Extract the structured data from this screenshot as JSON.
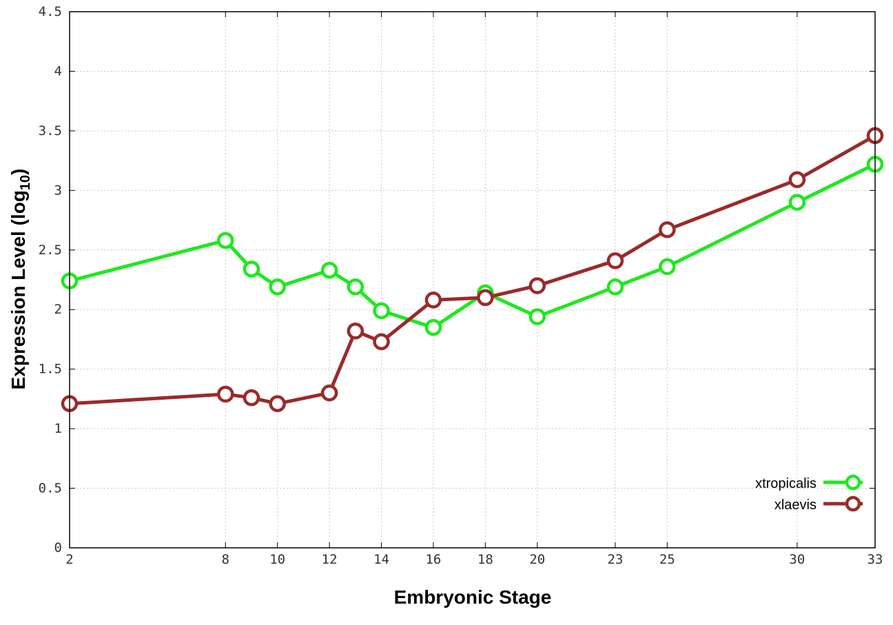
{
  "chart_data": {
    "type": "line",
    "title": "",
    "xlabel": "Embryonic Stage",
    "ylabel": "Expression Level (log",
    "ylabel_subscript": "10",
    "ylabel_suffix": ")",
    "x_ticks": [
      2,
      8,
      10,
      12,
      14,
      16,
      18,
      20,
      23,
      25,
      30,
      33
    ],
    "y_ticks": [
      0,
      0.5,
      1,
      1.5,
      2,
      2.5,
      3,
      3.5,
      4,
      4.5
    ],
    "y_tick_labels": [
      "0",
      "0.5",
      "1",
      "1.5",
      "2",
      "2.5",
      "3",
      "3.5",
      "4",
      "4.5"
    ],
    "xlim": [
      2,
      33
    ],
    "ylim": [
      0,
      4.5
    ],
    "grid": true,
    "legend_position": "bottom-right",
    "series": [
      {
        "name": "xtropicalis",
        "color": "#1ee81e",
        "x": [
          2,
          8,
          9,
          10,
          12,
          13,
          14,
          16,
          18,
          20,
          23,
          25,
          30,
          33
        ],
        "y": [
          2.24,
          2.58,
          2.34,
          2.19,
          2.33,
          2.19,
          1.99,
          1.85,
          2.14,
          1.94,
          2.19,
          2.36,
          2.9,
          3.22
        ]
      },
      {
        "name": "xlaevis",
        "color": "#9b2a2a",
        "x": [
          2,
          8,
          9,
          10,
          12,
          13,
          14,
          16,
          18,
          20,
          23,
          25,
          30,
          33
        ],
        "y": [
          1.21,
          1.29,
          1.26,
          1.21,
          1.3,
          1.82,
          1.73,
          2.08,
          2.1,
          2.2,
          2.41,
          2.67,
          3.09,
          3.46
        ]
      }
    ]
  }
}
